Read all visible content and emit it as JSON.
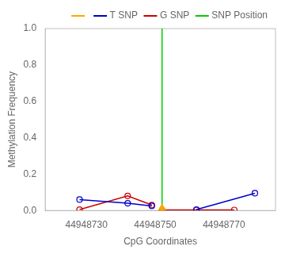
{
  "chart_data": {
    "type": "line",
    "xlabel": "CpG Coordinates",
    "ylabel": "Methylation Frequency",
    "xlim": [
      44948718,
      44948785
    ],
    "xticks": [
      44948730,
      44948750,
      44948770
    ],
    "ylim": [
      0.0,
      1.0
    ],
    "yticks": [
      {
        "value": 0.0,
        "label": "0.0"
      },
      0.2,
      0.4,
      0.6,
      0.8,
      {
        "value": 1.0,
        "label": "1.0"
      }
    ],
    "grid": false,
    "legend": "upper right",
    "series": [
      {
        "name": "T SNP",
        "type": "line",
        "color": "#0000cc",
        "marker": "circle",
        "x": [
          44948728,
          44948742,
          44948749,
          null,
          44948762,
          44948779
        ],
        "values": [
          0.06,
          0.04,
          0.025,
          null,
          0.005,
          0.095
        ]
      },
      {
        "name": "G SNP",
        "type": "line",
        "color": "#cc0000",
        "marker": "circle",
        "x": [
          44948728,
          44948742,
          44948749,
          null,
          44948752,
          44948762,
          44948773
        ],
        "values": [
          0.005,
          0.08,
          0.03,
          null,
          0.003,
          0.003,
          0.003
        ]
      },
      {
        "name": "SNP Position",
        "type": "vline",
        "color": "#00cc00",
        "x": [
          44948752
        ]
      },
      {
        "type": "scatter",
        "color": "orange",
        "marker": "triangle",
        "x": [
          44948752
        ],
        "values": [
          0.005
        ]
      }
    ]
  }
}
